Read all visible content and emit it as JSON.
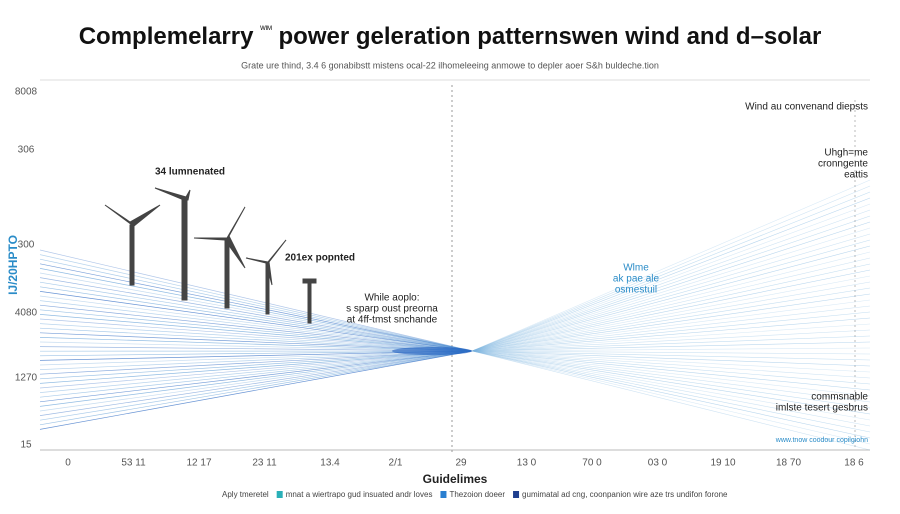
{
  "header": {
    "title_start": "Complemelarry",
    "title_mark": "ᵂᴵᴹ",
    "title_end": "power geleration patternswen wind and d–solar",
    "subtitle": "Grate ure thind, 3.4 6 gonabibstt mistens ocal-22 ilhomeleeing anmowe to depler aoer S&h buldeche.tion"
  },
  "axes": {
    "y_title": "IJ/20HPTO",
    "y_labels": [
      "8008",
      "306",
      "300",
      "4080",
      "1270",
      "15"
    ],
    "x_labels": [
      "0",
      "53 11",
      "12 17",
      "23 11",
      "13.4",
      "2/1",
      "29",
      "13 0",
      "70 0",
      "03 0",
      "19 10",
      "18 70",
      "18 6"
    ],
    "x_title": "Guidelimes"
  },
  "annotations": {
    "turbine_top": "34 lumnenated",
    "turbine_mid": "201ex popnted",
    "center_note": [
      "While aoplo:",
      "s sparp oust preorna",
      "at 4ff-tmst snchande"
    ],
    "right_top": "Wind au convenand diepsts",
    "right_second": [
      "Uhgh=me",
      "cronngente",
      "eattis"
    ],
    "right_blue": [
      "Wlme",
      "ak pae ale",
      "osmestuil"
    ],
    "right_bottom": [
      "commsnable",
      "imlste tesert gesbrus"
    ],
    "right_link": "www.tnow coodour copilgiohn"
  },
  "legend": [
    {
      "label": "Aply tmeretel"
    },
    {
      "label": "mnat a wiertrapo gud insuated andr loves"
    },
    {
      "label": "Thezoion doeer"
    },
    {
      "label": "gumimatal ad cng, coonpanion wire aze trs undifon forone"
    }
  ]
}
